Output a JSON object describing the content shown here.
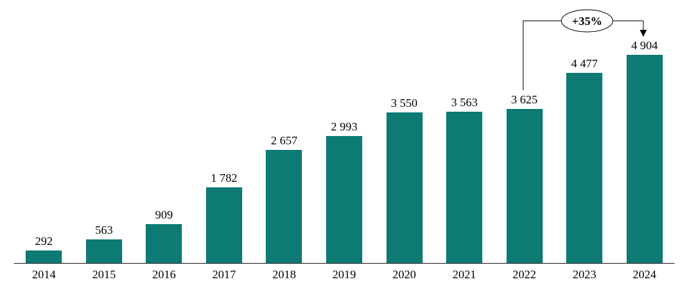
{
  "chart_data": {
    "type": "bar",
    "categories": [
      "2014",
      "2015",
      "2016",
      "2017",
      "2018",
      "2019",
      "2020",
      "2021",
      "2022",
      "2023",
      "2024"
    ],
    "values": [
      292,
      563,
      909,
      1782,
      2657,
      2993,
      3550,
      3563,
      3625,
      4477,
      4904
    ],
    "value_labels": [
      "292",
      "563",
      "909",
      "1 782",
      "2 657",
      "2 993",
      "3 550",
      "3 563",
      "3 625",
      "4 477",
      "4 904"
    ],
    "title": "",
    "xlabel": "",
    "ylabel": "",
    "ylim": [
      0,
      4904
    ],
    "grid": "off",
    "legend": "none",
    "bar_color": "#0d7a73",
    "axis_color": "#262626",
    "annotation": {
      "label": "+35%",
      "from_category": "2022",
      "to_category": "2024"
    }
  }
}
